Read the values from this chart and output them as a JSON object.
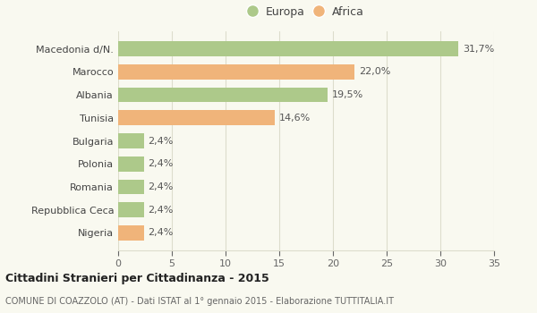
{
  "categories": [
    "Macedonia d/N.",
    "Marocco",
    "Albania",
    "Tunisia",
    "Bulgaria",
    "Polonia",
    "Romania",
    "Repubblica Ceca",
    "Nigeria"
  ],
  "values": [
    31.7,
    22.0,
    19.5,
    14.6,
    2.4,
    2.4,
    2.4,
    2.4,
    2.4
  ],
  "labels": [
    "31,7%",
    "22,0%",
    "19,5%",
    "14,6%",
    "2,4%",
    "2,4%",
    "2,4%",
    "2,4%",
    "2,4%"
  ],
  "colors": [
    "#adc98a",
    "#f0b47a",
    "#adc98a",
    "#f0b47a",
    "#adc98a",
    "#adc98a",
    "#adc98a",
    "#adc98a",
    "#f0b47a"
  ],
  "europa_color": "#adc98a",
  "africa_color": "#f0b47a",
  "xlim": [
    0,
    35
  ],
  "xticks": [
    0,
    5,
    10,
    15,
    20,
    25,
    30,
    35
  ],
  "title": "Cittadini Stranieri per Cittadinanza - 2015",
  "subtitle": "COMUNE DI COAZZOLO (AT) - Dati ISTAT al 1° gennaio 2015 - Elaborazione TUTTITALIA.IT",
  "background_color": "#f9f9f0",
  "legend_europa": "Europa",
  "legend_africa": "Africa",
  "bar_height": 0.65,
  "grid_color": "#ddddcc",
  "label_fontsize": 8,
  "ytick_fontsize": 8,
  "xtick_fontsize": 8
}
